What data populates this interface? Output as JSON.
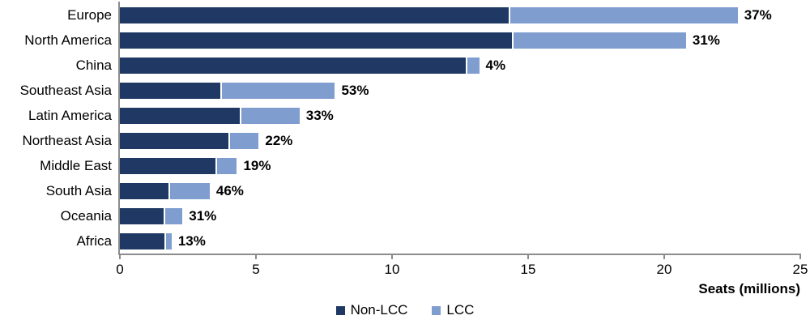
{
  "chart_data": {
    "type": "bar",
    "orientation": "horizontal",
    "stacked": true,
    "title": "",
    "xlabel": "Seats (millions)",
    "ylabel": "",
    "xlim": [
      0,
      25
    ],
    "xticks": [
      "0",
      "5",
      "10",
      "15",
      "20",
      "25"
    ],
    "xtick_values": [
      0,
      5,
      10,
      15,
      20,
      25
    ],
    "grid": false,
    "legend_position": "bottom-center",
    "categories": [
      "Europe",
      "North America",
      "China",
      "Southeast Asia",
      "Latin America",
      "Northeast Asia",
      "Middle East",
      "South Asia",
      "Oceania",
      "Africa"
    ],
    "series": [
      {
        "name": "Non-LCC",
        "color": "#1F3964",
        "values": [
          14.3,
          14.4,
          12.7,
          3.7,
          4.4,
          4.0,
          3.5,
          1.8,
          1.6,
          1.65
        ]
      },
      {
        "name": "LCC",
        "color": "#7F9DCF",
        "values": [
          8.4,
          6.4,
          0.5,
          4.2,
          2.2,
          1.1,
          0.8,
          1.5,
          0.7,
          0.25
        ]
      }
    ],
    "bar_labels": [
      "37%",
      "31%",
      "4%",
      "53%",
      "33%",
      "22%",
      "19%",
      "46%",
      "31%",
      "13%"
    ],
    "colors": {
      "axis": "#8c8c8c",
      "text": "#000000",
      "background": "#ffffff"
    }
  }
}
